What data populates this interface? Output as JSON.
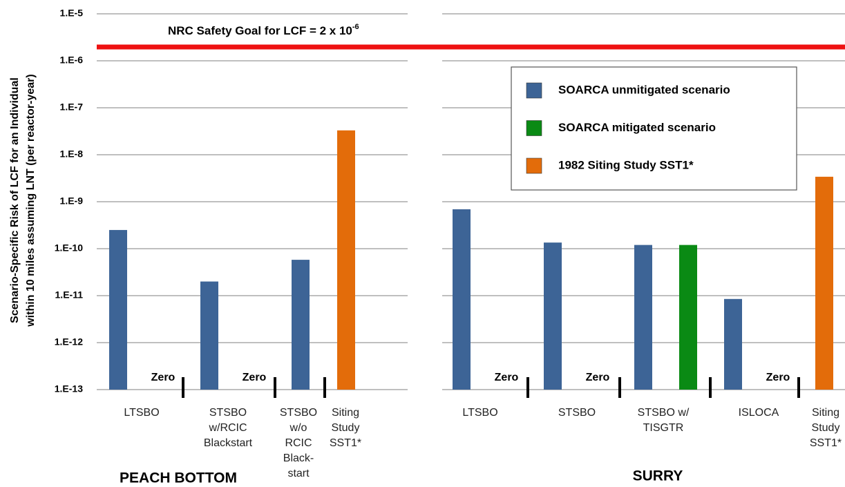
{
  "chart_data": [
    {
      "type": "bar",
      "title": "PEACH BOTTOM",
      "log_scale": true,
      "grid": true,
      "ylabel": [
        "Scenario-Specific Risk of LCF for an Individual",
        "within 10 miles assuming LNT (per reactor-year)"
      ],
      "ylim": [
        1e-13,
        1e-05
      ],
      "yticks": [
        {
          "value": 1e-05,
          "label": "1.E-5"
        },
        {
          "value": 1e-06,
          "label": "1.E-6"
        },
        {
          "value": 1e-07,
          "label": "1.E-7"
        },
        {
          "value": 1e-08,
          "label": "1.E-8"
        },
        {
          "value": 1e-09,
          "label": "1.E-9"
        },
        {
          "value": 1e-10,
          "label": "1.E-10"
        },
        {
          "value": 1e-11,
          "label": "1.E-11"
        },
        {
          "value": 1e-12,
          "label": "1.E-12"
        },
        {
          "value": 1e-13,
          "label": "1.E-13"
        }
      ],
      "annotation": {
        "label": "NRC Safety Goal for LCF = 2 x 10",
        "exponent": "-6",
        "value": 2e-06,
        "color": "#ee1111"
      },
      "categories": [
        "LTSBO",
        "STSBO\nw/RCIC\nBlackstart",
        "STSBO\nw/o\nRCIC\nBlack-\nstart",
        "Siting\nStudy\nSST1*"
      ],
      "series": [
        {
          "name": "SOARCA unmitigated scenario",
          "color": "#3d6496",
          "values": [
            2.5e-10,
            2e-11,
            5.8e-11,
            null
          ]
        },
        {
          "name": "SOARCA mitigated scenario",
          "color": "#0a8a14",
          "values": [
            0,
            0,
            null,
            null
          ],
          "value_labels": [
            "Zero",
            "Zero",
            null,
            null
          ]
        },
        {
          "name": "1982 Siting Study SST1*",
          "color": "#e36c0a",
          "values": [
            null,
            null,
            null,
            3.3e-08
          ]
        }
      ]
    },
    {
      "type": "bar",
      "title": "SURRY",
      "log_scale": true,
      "grid": true,
      "legend": "upper right",
      "ylim": [
        1e-13,
        1e-05
      ],
      "categories": [
        "LTSBO",
        "STSBO",
        "STSBO w/\nTISGTR",
        "ISLOCA",
        "Siting\nStudy\nSST1*"
      ],
      "series": [
        {
          "name": "SOARCA unmitigated scenario",
          "color": "#3d6496",
          "values": [
            6.9e-10,
            1.35e-10,
            1.2e-10,
            8.5e-12,
            null
          ]
        },
        {
          "name": "SOARCA mitigated scenario",
          "color": "#0a8a14",
          "values": [
            0,
            0,
            1.2e-10,
            0,
            null
          ],
          "value_labels": [
            "Zero",
            "Zero",
            null,
            "Zero",
            null
          ]
        },
        {
          "name": "1982 Siting Study SST1*",
          "color": "#e36c0a",
          "values": [
            null,
            null,
            null,
            null,
            3.4e-09
          ]
        }
      ]
    }
  ]
}
